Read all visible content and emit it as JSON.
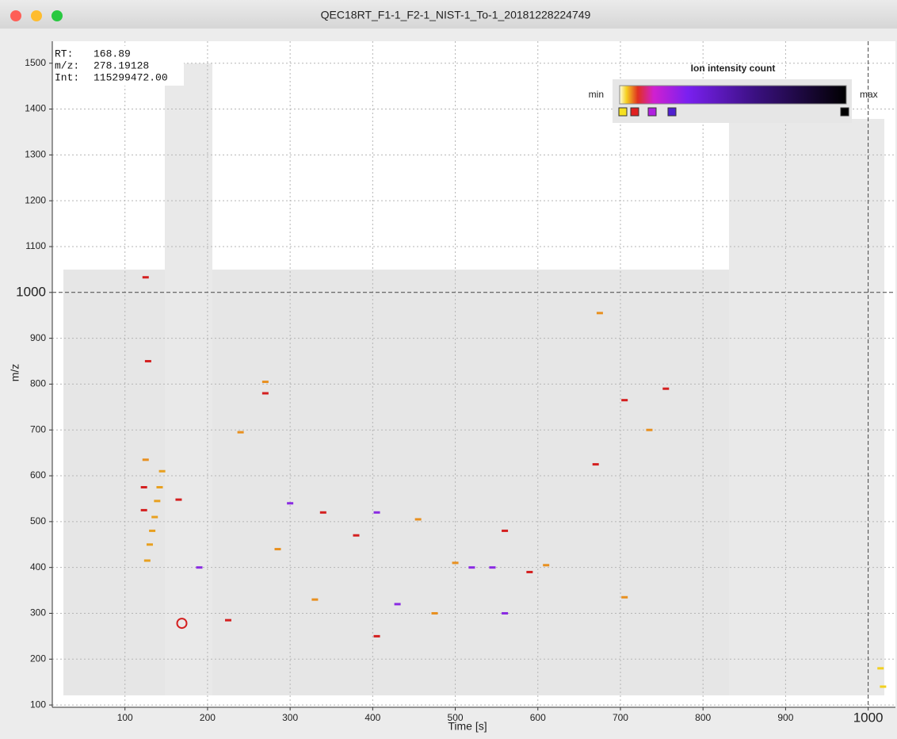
{
  "window": {
    "title": "QEC18RT_F1-1_F2-1_NIST-1_To-1_20181228224749"
  },
  "chart_data": {
    "type": "scatter",
    "x_label": "Time [s]",
    "y_label": "m/z",
    "xlim": [
      12,
      1033
    ],
    "ylim": [
      95,
      1548
    ],
    "xticks": [
      100,
      200,
      300,
      400,
      500,
      600,
      700,
      800,
      900,
      1000
    ],
    "yticks": [
      100,
      200,
      300,
      400,
      500,
      600,
      700,
      800,
      900,
      1000,
      1100,
      1200,
      1300,
      1400,
      1500
    ],
    "grid": true,
    "crosshair": {
      "x": 1000,
      "y": 1000
    },
    "readout": {
      "labels": [
        "RT:",
        "m/z:",
        "Int:"
      ],
      "values": [
        168.89,
        278.19128,
        115299472
      ],
      "value_labels": [
        "168.89",
        "278.19128",
        "115299472.00"
      ]
    },
    "legend": {
      "title": "Ion intensity count",
      "min_label": "min",
      "max_label": "max"
    },
    "x": [
      125,
      128,
      270,
      123,
      123,
      165,
      190,
      240,
      300,
      380,
      405,
      430,
      520,
      545,
      500,
      560,
      560,
      675,
      705,
      755,
      670,
      705,
      735,
      405,
      475,
      330,
      225,
      285,
      590,
      610,
      1015,
      1018,
      127,
      130,
      133,
      136,
      139,
      142,
      145,
      125,
      340,
      455,
      270
    ],
    "values": [
      1033,
      850,
      780,
      575,
      525,
      548,
      400,
      695,
      540,
      470,
      520,
      320,
      400,
      400,
      410,
      480,
      300,
      955,
      765,
      790,
      625,
      335,
      700,
      250,
      300,
      330,
      285,
      440,
      390,
      405,
      180,
      140,
      415,
      450,
      480,
      510,
      545,
      575,
      610,
      635,
      520,
      505,
      805
    ],
    "point_colors": [
      "#d42020",
      "#d42020",
      "#d42020",
      "#d42020",
      "#d42020",
      "#d42020",
      "#8a2be2",
      "#e89020",
      "#8a2be2",
      "#d42020",
      "#8a2be2",
      "#8a2be2",
      "#8a2be2",
      "#8a2be2",
      "#e89020",
      "#d42020",
      "#8a2be2",
      "#e89020",
      "#d42020",
      "#d42020",
      "#d42020",
      "#e89020",
      "#e89020",
      "#d42020",
      "#e89020",
      "#e89020",
      "#d42020",
      "#e89020",
      "#d42020",
      "#e89020",
      "#f2d020",
      "#f2d020",
      "#e8a020",
      "#e8a020",
      "#e8a020",
      "#e8a020",
      "#e8a020",
      "#e8a020",
      "#e8a020",
      "#e89020",
      "#d42020",
      "#e89020",
      "#e89020"
    ]
  }
}
